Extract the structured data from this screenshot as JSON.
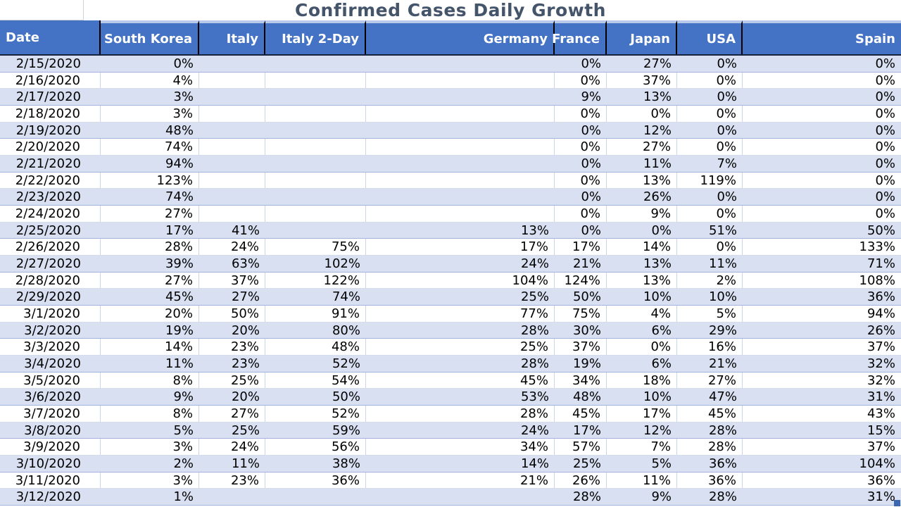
{
  "title": "Confirmed Cases Daily Growth",
  "chart_data": {
    "type": "table",
    "title": "Confirmed Cases Daily Growth",
    "columns": [
      "Date",
      "South Korea",
      "Italy",
      "Italy 2-Day",
      "Germany",
      "France",
      "Japan",
      "USA",
      "Spain"
    ],
    "rows": [
      [
        "2/15/2020",
        "0%",
        "",
        "",
        "",
        "0%",
        "27%",
        "0%",
        "0%"
      ],
      [
        "2/16/2020",
        "4%",
        "",
        "",
        "",
        "0%",
        "37%",
        "0%",
        "0%"
      ],
      [
        "2/17/2020",
        "3%",
        "",
        "",
        "",
        "9%",
        "13%",
        "0%",
        "0%"
      ],
      [
        "2/18/2020",
        "3%",
        "",
        "",
        "",
        "0%",
        "0%",
        "0%",
        "0%"
      ],
      [
        "2/19/2020",
        "48%",
        "",
        "",
        "",
        "0%",
        "12%",
        "0%",
        "0%"
      ],
      [
        "2/20/2020",
        "74%",
        "",
        "",
        "",
        "0%",
        "27%",
        "0%",
        "0%"
      ],
      [
        "2/21/2020",
        "94%",
        "",
        "",
        "",
        "0%",
        "11%",
        "7%",
        "0%"
      ],
      [
        "2/22/2020",
        "123%",
        "",
        "",
        "",
        "0%",
        "13%",
        "119%",
        "0%"
      ],
      [
        "2/23/2020",
        "74%",
        "",
        "",
        "",
        "0%",
        "26%",
        "0%",
        "0%"
      ],
      [
        "2/24/2020",
        "27%",
        "",
        "",
        "",
        "0%",
        "9%",
        "0%",
        "0%"
      ],
      [
        "2/25/2020",
        "17%",
        "41%",
        "",
        "13%",
        "0%",
        "0%",
        "51%",
        "50%"
      ],
      [
        "2/26/2020",
        "28%",
        "24%",
        "75%",
        "17%",
        "17%",
        "14%",
        "0%",
        "133%"
      ],
      [
        "2/27/2020",
        "39%",
        "63%",
        "102%",
        "24%",
        "21%",
        "13%",
        "11%",
        "71%"
      ],
      [
        "2/28/2020",
        "27%",
        "37%",
        "122%",
        "104%",
        "124%",
        "13%",
        "2%",
        "108%"
      ],
      [
        "2/29/2020",
        "45%",
        "27%",
        "74%",
        "25%",
        "50%",
        "10%",
        "10%",
        "36%"
      ],
      [
        "3/1/2020",
        "20%",
        "50%",
        "91%",
        "77%",
        "75%",
        "4%",
        "5%",
        "94%"
      ],
      [
        "3/2/2020",
        "19%",
        "20%",
        "80%",
        "28%",
        "30%",
        "6%",
        "29%",
        "26%"
      ],
      [
        "3/3/2020",
        "14%",
        "23%",
        "48%",
        "25%",
        "37%",
        "0%",
        "16%",
        "37%"
      ],
      [
        "3/4/2020",
        "11%",
        "23%",
        "52%",
        "28%",
        "19%",
        "6%",
        "21%",
        "32%"
      ],
      [
        "3/5/2020",
        "8%",
        "25%",
        "54%",
        "45%",
        "34%",
        "18%",
        "27%",
        "32%"
      ],
      [
        "3/6/2020",
        "9%",
        "20%",
        "50%",
        "53%",
        "48%",
        "10%",
        "47%",
        "31%"
      ],
      [
        "3/7/2020",
        "8%",
        "27%",
        "52%",
        "28%",
        "45%",
        "17%",
        "45%",
        "43%"
      ],
      [
        "3/8/2020",
        "5%",
        "25%",
        "59%",
        "24%",
        "17%",
        "12%",
        "28%",
        "15%"
      ],
      [
        "3/9/2020",
        "3%",
        "24%",
        "56%",
        "34%",
        "57%",
        "7%",
        "28%",
        "37%"
      ],
      [
        "3/10/2020",
        "2%",
        "11%",
        "38%",
        "14%",
        "25%",
        "5%",
        "36%",
        "104%"
      ],
      [
        "3/11/2020",
        "3%",
        "23%",
        "36%",
        "21%",
        "26%",
        "11%",
        "36%",
        "36%"
      ],
      [
        "3/12/2020",
        "1%",
        "",
        "",
        "",
        "28%",
        "9%",
        "28%",
        "31%"
      ]
    ]
  },
  "colors": {
    "header_bg": "#4472C4",
    "header_text": "#FFFFFF",
    "header_divider": "#000000",
    "header_top_strip": "#B9C9EA",
    "band_row": "#D8E0F2",
    "band_divider": "#9FB3DD",
    "grid_line": "#CBD5E8",
    "title_text": "#44546A",
    "resize_handle": "#3B66B0"
  }
}
